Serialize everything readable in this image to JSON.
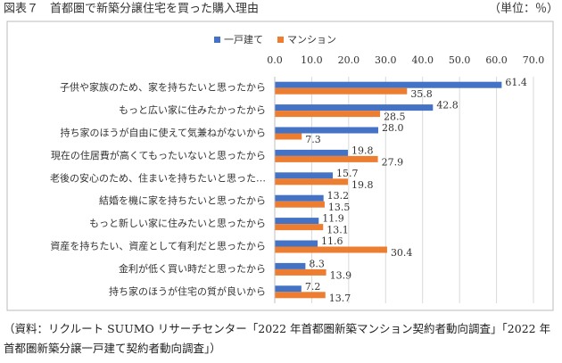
{
  "chart_data": {
    "type": "bar",
    "orientation": "horizontal",
    "title": "図表７　首都圏で新築分譲住宅を買った購入理由",
    "unit": "（単位：％）",
    "categories": [
      "子供や家族のため、家を持ちたいと思ったから",
      "もっと広い家に住みたかったから",
      "持ち家のほうが自由に使えて気兼ねがないから",
      "現在の住居費が高くてもったいないと思ったから",
      "老後の安心のため、住まいを持ちたいと思った…",
      "結婚を機に家を持ちたいと思ったから",
      "もっと新しい家に住みたいと思ったから",
      "資産を持ちたい、資産として有利だと思ったから",
      "金利が低く買い時だと思ったから",
      "持ち家のほうが住宅の質が良いから"
    ],
    "series": [
      {
        "name": "一戸建て",
        "color": "#4472c4",
        "values": [
          61.4,
          42.8,
          28.0,
          19.8,
          15.7,
          13.2,
          11.9,
          11.6,
          8.3,
          7.2
        ],
        "value_labels": [
          "61.4",
          "42.8",
          "28.0",
          "19.8",
          "15.7",
          "13.2",
          "11.9",
          "11.6",
          "8.3",
          "7.2"
        ]
      },
      {
        "name": "マンション",
        "color": "#ed7d31",
        "values": [
          35.8,
          28.5,
          7.3,
          27.9,
          19.8,
          13.5,
          13.1,
          30.4,
          13.9,
          13.7
        ],
        "value_labels": [
          "35.8",
          "28.5",
          "7.3",
          "27.9",
          "19.8",
          "13.5",
          "13.1",
          "30.4",
          "13.9",
          "13.7"
        ]
      }
    ],
    "xlim": [
      0,
      70
    ],
    "xticks": [
      {
        "value": 0,
        "label": "0.0"
      },
      {
        "value": 10,
        "label": "10.0"
      },
      {
        "value": 20,
        "label": "20.0"
      },
      {
        "value": 30,
        "label": "30.0"
      },
      {
        "value": 40,
        "label": "40.0"
      },
      {
        "value": 50,
        "label": "50.0"
      },
      {
        "value": 60,
        "label": "60.0"
      },
      {
        "value": 70,
        "label": "70.0"
      }
    ],
    "grid": true,
    "legend": "top",
    "source": "（資料：リクルート SUUMO リサーチセンター「2022 年首都圏新築マンション契約者動向調査」「2022 年首都圏新築分譲一戸建て契約者動向調査」）"
  }
}
